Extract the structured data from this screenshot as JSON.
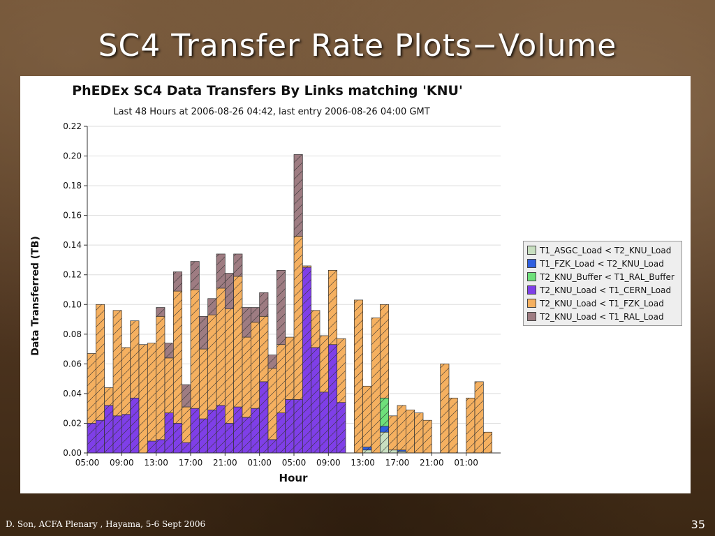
{
  "slide": {
    "title": "SC4 Transfer Rate Plots−Volume",
    "footer": "D. Son, ACFA Plenary , Hayama, 5-6 Sept 2006",
    "page_number": "35"
  },
  "chart_data": {
    "type": "bar",
    "stacked": true,
    "title": "PhEDEx SC4 Data Transfers By Links matching 'KNU'",
    "subtitle": "Last 48 Hours at 2006-08-26 04:42, last entry 2006-08-26 04:00 GMT",
    "xlabel": "Hour",
    "ylabel": "Data Transferred (TB)",
    "ylim": [
      0,
      0.22
    ],
    "yticks": [
      "0.00",
      "0.02",
      "0.04",
      "0.06",
      "0.08",
      "0.10",
      "0.12",
      "0.14",
      "0.16",
      "0.18",
      "0.20",
      "0.22"
    ],
    "xticks": [
      {
        "index": 0,
        "label": "05:00"
      },
      {
        "index": 4,
        "label": "09:00"
      },
      {
        "index": 8,
        "label": "13:00"
      },
      {
        "index": 12,
        "label": "17:00"
      },
      {
        "index": 16,
        "label": "21:00"
      },
      {
        "index": 20,
        "label": "01:00"
      },
      {
        "index": 24,
        "label": "05:00"
      },
      {
        "index": 28,
        "label": "09:00"
      },
      {
        "index": 32,
        "label": "13:00"
      },
      {
        "index": 36,
        "label": "17:00"
      },
      {
        "index": 40,
        "label": "21:00"
      },
      {
        "index": 44,
        "label": "01:00"
      }
    ],
    "grid": true,
    "legend_position": "right",
    "series": [
      {
        "name": "T1_ASGC_Load < T2_KNU_Load",
        "color": "#c8dfc0",
        "values": [
          0,
          0,
          0,
          0,
          0,
          0,
          0,
          0,
          0,
          0,
          0,
          0,
          0,
          0,
          0,
          0,
          0,
          0,
          0,
          0,
          0,
          0,
          0,
          0,
          0,
          0,
          0,
          0,
          0,
          0,
          0,
          0,
          0.002,
          0,
          0.014,
          0.002,
          0.001,
          0,
          0,
          0,
          0,
          0,
          0,
          0,
          0,
          0,
          0,
          0
        ]
      },
      {
        "name": "T1_FZK_Load < T2_KNU_Load",
        "color": "#2f5fe0",
        "values": [
          0,
          0,
          0,
          0,
          0,
          0,
          0,
          0,
          0,
          0,
          0,
          0,
          0,
          0,
          0,
          0,
          0,
          0,
          0,
          0,
          0,
          0,
          0,
          0,
          0,
          0,
          0,
          0,
          0,
          0,
          0,
          0,
          0.002,
          0,
          0.004,
          0,
          0.001,
          0,
          0,
          0,
          0,
          0,
          0,
          0,
          0,
          0,
          0,
          0
        ]
      },
      {
        "name": "T2_KNU_Buffer < T1_RAL_Buffer",
        "color": "#6ee07a",
        "values": [
          0,
          0,
          0,
          0,
          0,
          0,
          0,
          0,
          0,
          0,
          0,
          0,
          0,
          0,
          0,
          0,
          0,
          0,
          0,
          0,
          0,
          0,
          0,
          0,
          0,
          0,
          0,
          0,
          0,
          0,
          0,
          0,
          0,
          0,
          0.019,
          0,
          0,
          0,
          0,
          0,
          0,
          0,
          0,
          0,
          0,
          0,
          0,
          0
        ]
      },
      {
        "name": "T2_KNU_Load < T1_CERN_Load",
        "color": "#7f3fe8",
        "values": [
          0.02,
          0.022,
          0.032,
          0.025,
          0.026,
          0.037,
          0,
          0.008,
          0.009,
          0.027,
          0.02,
          0.007,
          0.03,
          0.023,
          0.029,
          0.032,
          0.02,
          0.031,
          0.024,
          0.03,
          0.048,
          0.009,
          0.027,
          0.036,
          0.036,
          0.125,
          0.071,
          0.041,
          0.073,
          0.034,
          0,
          0,
          0,
          0,
          0,
          0,
          0,
          0,
          0,
          0,
          0,
          0,
          0,
          0,
          0,
          0,
          0,
          0
        ]
      },
      {
        "name": "T2_KNU_Load < T1_FZK_Load",
        "color": "#f5b060",
        "values": [
          0.047,
          0.078,
          0.012,
          0.071,
          0.045,
          0.052,
          0.073,
          0.066,
          0.083,
          0.037,
          0.089,
          0.024,
          0.08,
          0.047,
          0.064,
          0.079,
          0.077,
          0.088,
          0.054,
          0.058,
          0.044,
          0.048,
          0.046,
          0.042,
          0.11,
          0.001,
          0.025,
          0.038,
          0.05,
          0.043,
          0,
          0.103,
          0.041,
          0.091,
          0.063,
          0.023,
          0.03,
          0.029,
          0.027,
          0.022,
          0,
          0.06,
          0.037,
          0,
          0.037,
          0.048,
          0.014,
          0
        ]
      },
      {
        "name": "T2_KNU_Load < T1_RAL_Load",
        "color": "#9e7c82",
        "values": [
          0,
          0,
          0,
          0,
          0,
          0,
          0,
          0,
          0.006,
          0.01,
          0.013,
          0.015,
          0.019,
          0.022,
          0.011,
          0.023,
          0.024,
          0.015,
          0.02,
          0.01,
          0.016,
          0.009,
          0.05,
          0,
          0.055,
          0,
          0,
          0,
          0,
          0,
          0,
          0,
          0,
          0,
          0,
          0,
          0,
          0,
          0,
          0,
          0,
          0,
          0,
          0,
          0,
          0,
          0,
          0
        ]
      }
    ]
  }
}
